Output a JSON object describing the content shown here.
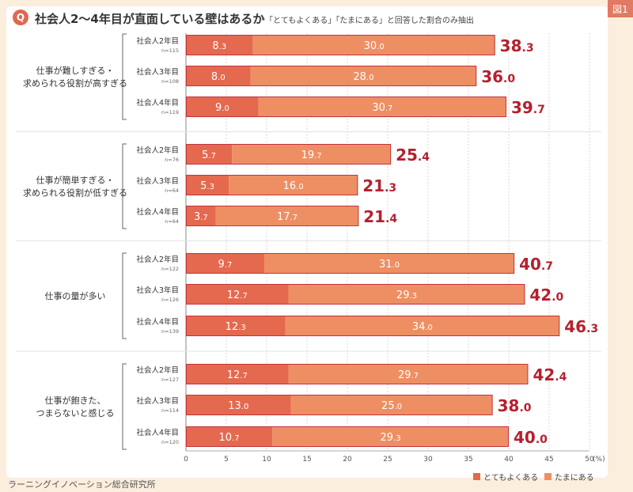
{
  "badge": "図1",
  "q_label": "Q",
  "title": "社会人2～4年目が直面している壁はあるか",
  "subtitle": "*「とてもよくある」「たまにある」と回答した割合のみ抽出",
  "source": "ラーニングイノベーション総合研究所",
  "colors": {
    "often": "#e5694f",
    "sometimes": "#ee8f63",
    "total": "#b5202e"
  },
  "chart_data": {
    "type": "bar",
    "orientation": "horizontal",
    "stacked": true,
    "xlim": [
      0,
      50
    ],
    "x_ticks": [
      "0",
      "5",
      "10",
      "15",
      "20",
      "25",
      "30",
      "35",
      "40",
      "45",
      "50"
    ],
    "x_unit": "(%)",
    "legend": [
      {
        "name": "とてもよくある",
        "color": "#e5694f"
      },
      {
        "name": "たまにある",
        "color": "#ee8f63"
      }
    ],
    "legend_position": "bottom-right",
    "groups": [
      {
        "label_lines": [
          "仕事が難しすぎる・",
          "求められる役割が高すぎる"
        ],
        "rows": [
          {
            "label": "社会人2年目",
            "n": "n=115",
            "often": 8.3,
            "sometimes": 30.0,
            "total": 38.3
          },
          {
            "label": "社会人3年目",
            "n": "n=108",
            "often": 8.0,
            "sometimes": 28.0,
            "total": 36.0
          },
          {
            "label": "社会人4年目",
            "n": "n=119",
            "often": 9.0,
            "sometimes": 30.7,
            "total": 39.7
          }
        ]
      },
      {
        "label_lines": [
          "仕事が簡単すぎる・",
          "求められる役割が低すぎる"
        ],
        "rows": [
          {
            "label": "社会人2年目",
            "n": "n=76",
            "often": 5.7,
            "sometimes": 19.7,
            "total": 25.4
          },
          {
            "label": "社会人3年目",
            "n": "n=64",
            "often": 5.3,
            "sometimes": 16.0,
            "total": 21.3
          },
          {
            "label": "社会人4年目",
            "n": "n=64",
            "often": 3.7,
            "sometimes": 17.7,
            "total": 21.4
          }
        ]
      },
      {
        "label_lines": [
          "仕事の量が多い"
        ],
        "rows": [
          {
            "label": "社会人2年目",
            "n": "n=122",
            "often": 9.7,
            "sometimes": 31.0,
            "total": 40.7
          },
          {
            "label": "社会人3年目",
            "n": "n=126",
            "often": 12.7,
            "sometimes": 29.3,
            "total": 42.0
          },
          {
            "label": "社会人4年目",
            "n": "n=139",
            "often": 12.3,
            "sometimes": 34.0,
            "total": 46.3
          }
        ]
      },
      {
        "label_lines": [
          "仕事が飽きた、",
          "つまらないと感じる"
        ],
        "rows": [
          {
            "label": "社会人2年目",
            "n": "n=127",
            "often": 12.7,
            "sometimes": 29.7,
            "total": 42.4
          },
          {
            "label": "社会人3年目",
            "n": "n=114",
            "often": 13.0,
            "sometimes": 25.0,
            "total": 38.0
          },
          {
            "label": "社会人4年目",
            "n": "n=120",
            "often": 10.7,
            "sometimes": 29.3,
            "total": 40.0
          }
        ]
      }
    ]
  }
}
